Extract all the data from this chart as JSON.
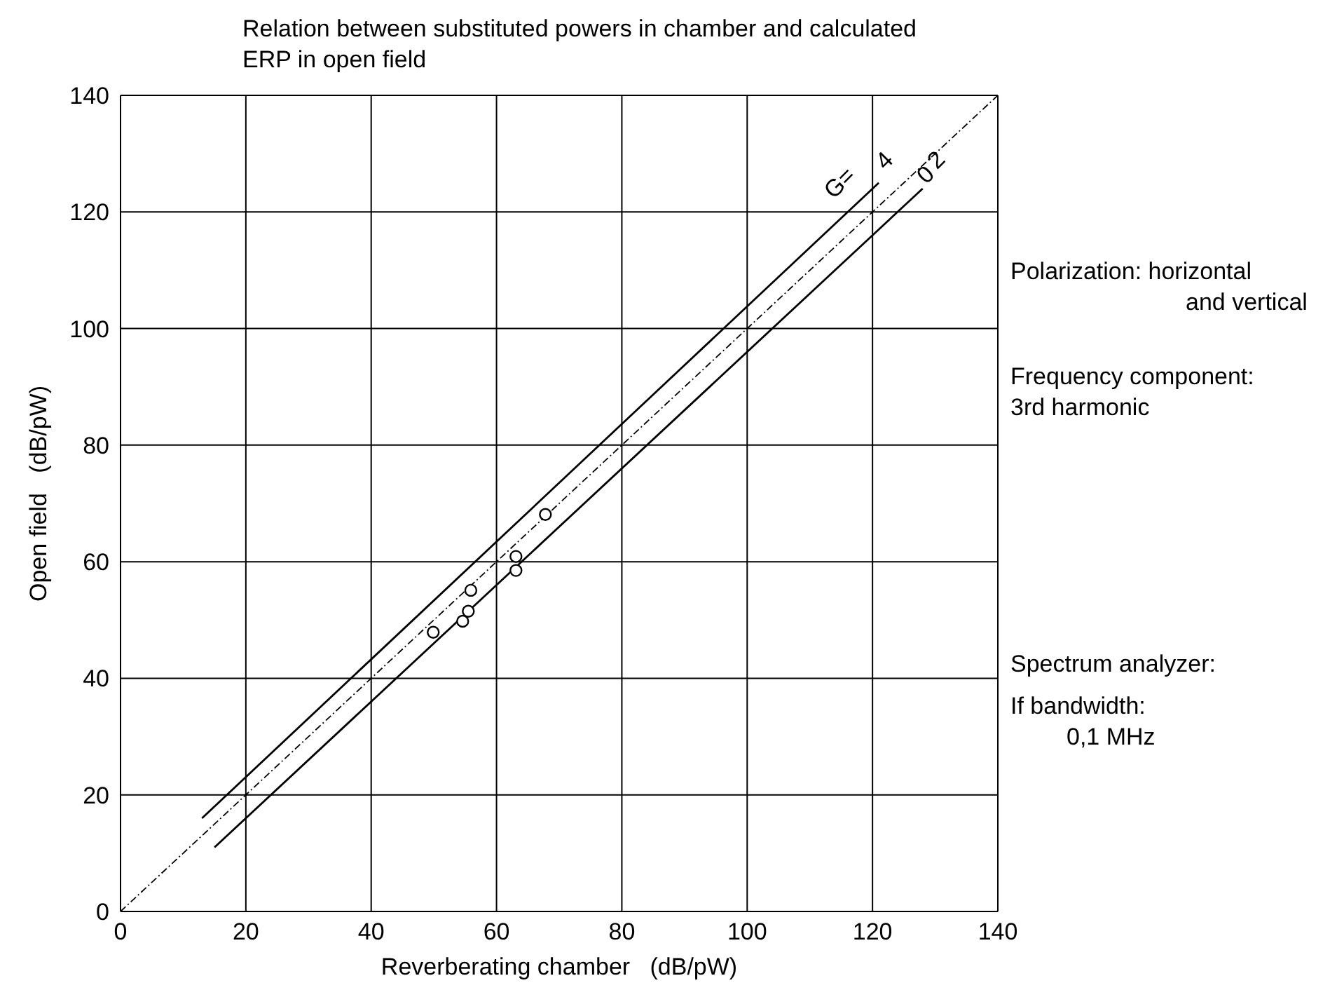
{
  "chart_data": {
    "type": "scatter",
    "title": "Relation between substituted powers in chamber and calculated ERP in open field",
    "xlabel": "Reverberating chamber   (dB/pW)",
    "ylabel": "Open field   (dB/pW)",
    "series": [
      {
        "color": "#000000",
        "marker": "circle",
        "x": [
          49.9,
          54.6,
          55.5,
          55.9,
          63.1,
          63.1,
          67.8
        ],
        "values": [
          47.9,
          49.8,
          51.5,
          55.1,
          60.9,
          58.5,
          68.1
        ]
      },
      {
        "type": "line",
        "name": "4",
        "color": "#000000",
        "line_style": "solid",
        "marker": "none",
        "x": [
          13,
          121
        ],
        "values": [
          16,
          125
        ]
      },
      {
        "type": "line",
        "name": "2",
        "color": "#000000",
        "line_style": "dotted",
        "marker": "none",
        "x": [
          0,
          140
        ],
        "values": [
          0,
          140
        ]
      },
      {
        "type": "line",
        "name": "0",
        "color": "#000000",
        "line_style": "solid",
        "marker": "none",
        "x": [
          15,
          128
        ],
        "values": [
          11,
          124
        ]
      }
    ],
    "xlim": [
      0,
      140
    ],
    "ylim": [
      0,
      140
    ],
    "xticks": [
      0,
      20,
      40,
      60,
      80,
      100,
      120,
      140
    ],
    "yticks": [
      0,
      20,
      40,
      60,
      80,
      100,
      120,
      140
    ],
    "grid": true,
    "legend": false,
    "annotations": [
      "G=",
      "Polarization: horizontal\nand vertical",
      "Frequency component:\n3rd harmonic",
      "Spectrum analyzer:",
      "If bandwidth:\n0,1 MHz"
    ]
  }
}
